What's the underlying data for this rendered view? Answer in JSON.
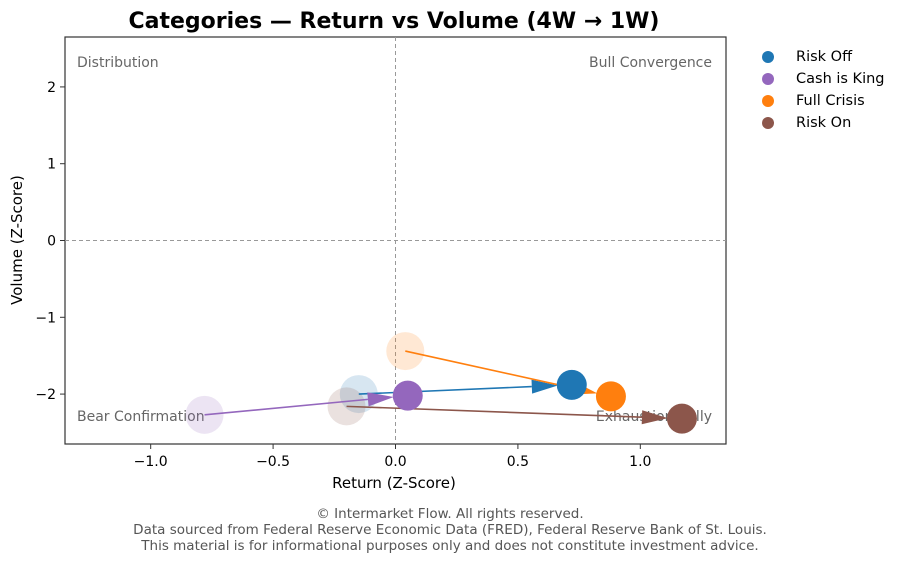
{
  "chart_data": {
    "type": "scatter",
    "title": "Categories — Return vs Volume (4W → 1W)",
    "xlabel": "Return (Z-Score)",
    "ylabel": "Volume (Z-Score)",
    "xlim": [
      -1.35,
      1.35
    ],
    "ylim": [
      -2.65,
      2.65
    ],
    "xticks": [
      -1.0,
      -0.5,
      0.0,
      0.5,
      1.0
    ],
    "xtick_labels": [
      "−1.0",
      "−0.5",
      "0.0",
      "0.5",
      "1.0"
    ],
    "yticks": [
      -2,
      -1,
      0,
      1,
      2
    ],
    "ytick_labels": [
      "−2",
      "−1",
      "0",
      "1",
      "2"
    ],
    "grid": false,
    "reference_lines": {
      "x": 0,
      "y": 0
    },
    "quadrant_labels": {
      "top_left": "Distribution",
      "top_right": "Bull Convergence",
      "bottom_left": "Bear Confirmation",
      "bottom_right": "Exhaustion Rally"
    },
    "legend_position": "outside-right",
    "series": [
      {
        "name": "Risk Off",
        "color": "#1f77b4",
        "start": {
          "x": -0.15,
          "y": -2.0
        },
        "end": {
          "x": 0.72,
          "y": -1.88
        }
      },
      {
        "name": "Cash is King",
        "color": "#9467bd",
        "start": {
          "x": -0.78,
          "y": -2.27
        },
        "end": {
          "x": 0.05,
          "y": -2.02
        }
      },
      {
        "name": "Full Crisis",
        "color": "#ff7f0e",
        "start": {
          "x": 0.04,
          "y": -1.44
        },
        "end": {
          "x": 0.88,
          "y": -2.03
        }
      },
      {
        "name": "Risk On",
        "color": "#8c564b",
        "start": {
          "x": -0.2,
          "y": -2.16
        },
        "end": {
          "x": 1.17,
          "y": -2.32
        }
      }
    ]
  },
  "footer": {
    "line1": "© Intermarket Flow. All rights reserved.",
    "line2": "Data sourced from Federal Reserve Economic Data (FRED), Federal Reserve Bank of St. Louis.",
    "line3": "This material is for informational purposes only and does not constitute investment advice."
  }
}
